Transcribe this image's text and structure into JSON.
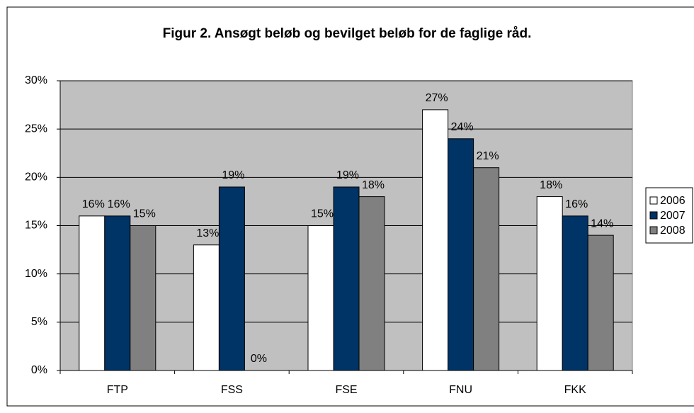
{
  "chart_data": {
    "type": "bar",
    "title": "Figur 2. Ansøgt beløb og bevilget beløb for de faglige råd.",
    "categories": [
      "FTP",
      "FSS",
      "FSE",
      "FNU",
      "FKK"
    ],
    "series": [
      {
        "name": "2006",
        "color": "#ffffff",
        "values": [
          16,
          13,
          15,
          27,
          18
        ],
        "value_labels": [
          "16%",
          "13%",
          "15%",
          "27%",
          "18%"
        ]
      },
      {
        "name": "2007",
        "color": "#003366",
        "values": [
          16,
          19,
          19,
          24,
          16
        ],
        "value_labels": [
          "16%",
          "19%",
          "19%",
          "24%",
          "16%"
        ]
      },
      {
        "name": "2008",
        "color": "#808080",
        "values": [
          15,
          0,
          18,
          21,
          14
        ],
        "value_labels": [
          "15%",
          "0%",
          "18%",
          "21%",
          "14%"
        ]
      }
    ],
    "ylim": [
      0,
      30
    ],
    "yticks": [
      {
        "value": 0,
        "label": "0%"
      },
      {
        "value": 5,
        "label": "5%"
      },
      {
        "value": 10,
        "label": "10%"
      },
      {
        "value": 15,
        "label": "15%"
      },
      {
        "value": 20,
        "label": "20%"
      },
      {
        "value": 25,
        "label": "25%"
      },
      {
        "value": 30,
        "label": "30%"
      }
    ],
    "grid": true,
    "plot_background": "#c0c0c0",
    "legend": "right"
  }
}
